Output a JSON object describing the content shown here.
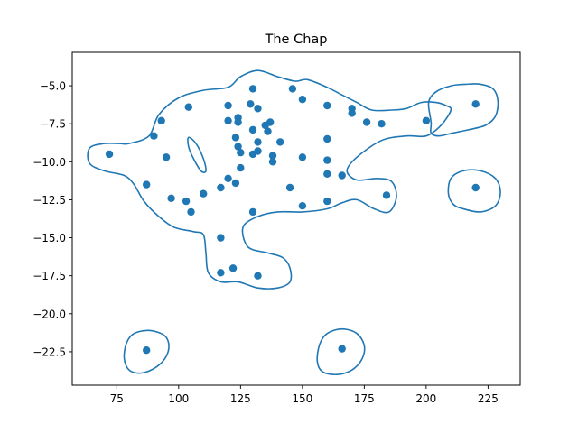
{
  "chart_data": {
    "type": "scatter",
    "title": "The Chap",
    "xlabel": "",
    "ylabel": "",
    "xlim": [
      57,
      238
    ],
    "ylim": [
      -24.7,
      -2.8
    ],
    "x_ticks": [
      75,
      100,
      125,
      150,
      175,
      200,
      225
    ],
    "y_ticks": [
      -5.0,
      -7.5,
      -10.0,
      -12.5,
      -15.0,
      -17.5,
      -20.0,
      -22.5
    ],
    "x_tick_labels": [
      "75",
      "100",
      "125",
      "150",
      "175",
      "200",
      "225"
    ],
    "y_tick_labels": [
      "−5.0",
      "−7.5",
      "−10.0",
      "−12.5",
      "−15.0",
      "−17.5",
      "−20.0",
      "−22.5"
    ],
    "grid": false,
    "color": "#1f77b4",
    "points": [
      [
        72,
        -9.5
      ],
      [
        87,
        -11.5
      ],
      [
        90,
        -8.3
      ],
      [
        93,
        -7.3
      ],
      [
        95,
        -9.7
      ],
      [
        97,
        -12.4
      ],
      [
        103,
        -12.6
      ],
      [
        104,
        -6.4
      ],
      [
        105,
        -13.3
      ],
      [
        110,
        -12.1
      ],
      [
        117,
        -11.7
      ],
      [
        117,
        -15.0
      ],
      [
        117,
        -17.3
      ],
      [
        120,
        -6.3
      ],
      [
        120,
        -7.3
      ],
      [
        120,
        -11.1
      ],
      [
        122,
        -17.0
      ],
      [
        123,
        -8.4
      ],
      [
        123,
        -11.4
      ],
      [
        124,
        -9.0
      ],
      [
        124,
        -7.1
      ],
      [
        124,
        -7.4
      ],
      [
        125,
        -9.4
      ],
      [
        125,
        -10.4
      ],
      [
        129,
        -6.2
      ],
      [
        130,
        -5.2
      ],
      [
        130,
        -7.9
      ],
      [
        130,
        -9.5
      ],
      [
        130,
        -13.3
      ],
      [
        132,
        -6.5
      ],
      [
        132,
        -8.7
      ],
      [
        132,
        -9.3
      ],
      [
        132,
        -17.5
      ],
      [
        135,
        -7.6
      ],
      [
        136,
        -8.0
      ],
      [
        137,
        -7.4
      ],
      [
        138,
        -9.6
      ],
      [
        138,
        -10.0
      ],
      [
        141,
        -8.7
      ],
      [
        145,
        -11.7
      ],
      [
        146,
        -5.2
      ],
      [
        150,
        -5.9
      ],
      [
        150,
        -9.7
      ],
      [
        150,
        -12.9
      ],
      [
        160,
        -6.3
      ],
      [
        160,
        -8.5
      ],
      [
        160,
        -9.9
      ],
      [
        160,
        -10.8
      ],
      [
        160,
        -12.6
      ],
      [
        166,
        -10.9
      ],
      [
        170,
        -6.5
      ],
      [
        170,
        -6.8
      ],
      [
        176,
        -7.4
      ],
      [
        182,
        -7.5
      ],
      [
        184,
        -12.2
      ],
      [
        200,
        -7.3
      ],
      [
        220,
        -6.2
      ],
      [
        220,
        -11.7
      ],
      [
        87,
        -22.4
      ],
      [
        166,
        -22.3
      ]
    ],
    "contours": [
      [
        [
          80,
          -8.8
        ],
        [
          88,
          -8.3
        ],
        [
          92,
          -6.9
        ],
        [
          100,
          -5.8
        ],
        [
          110,
          -5.3
        ],
        [
          120,
          -5.1
        ],
        [
          125,
          -4.4
        ],
        [
          132,
          -4.0
        ],
        [
          140,
          -4.4
        ],
        [
          147,
          -4.7
        ],
        [
          152,
          -4.6
        ],
        [
          160,
          -5.1
        ],
        [
          166,
          -5.6
        ],
        [
          172,
          -6.1
        ],
        [
          178,
          -6.6
        ],
        [
          186,
          -6.6
        ],
        [
          192,
          -6.5
        ],
        [
          198,
          -6.1
        ],
        [
          204,
          -6.1
        ],
        [
          208,
          -6.3
        ],
        [
          210,
          -6.6
        ],
        [
          206,
          -7.6
        ],
        [
          200,
          -8.3
        ],
        [
          192,
          -8.3
        ],
        [
          182,
          -8.6
        ],
        [
          172,
          -9.7
        ],
        [
          168,
          -10.6
        ],
        [
          172,
          -11.2
        ],
        [
          180,
          -11.1
        ],
        [
          186,
          -11.3
        ],
        [
          188,
          -12.3
        ],
        [
          185,
          -13.3
        ],
        [
          179,
          -13.1
        ],
        [
          172,
          -12.5
        ],
        [
          166,
          -12.7
        ],
        [
          160,
          -13.1
        ],
        [
          150,
          -13.3
        ],
        [
          140,
          -13.3
        ],
        [
          132,
          -13.6
        ],
        [
          126,
          -14.3
        ],
        [
          128,
          -15.6
        ],
        [
          136,
          -16.0
        ],
        [
          142,
          -16.3
        ],
        [
          145,
          -17.0
        ],
        [
          145,
          -17.9
        ],
        [
          140,
          -18.3
        ],
        [
          132,
          -18.3
        ],
        [
          124,
          -17.9
        ],
        [
          117,
          -17.9
        ],
        [
          112,
          -17.3
        ],
        [
          111,
          -16.0
        ],
        [
          110,
          -14.8
        ],
        [
          106,
          -14.6
        ],
        [
          98,
          -14.3
        ],
        [
          92,
          -13.6
        ],
        [
          86,
          -12.6
        ],
        [
          82,
          -11.5
        ],
        [
          78,
          -10.9
        ],
        [
          70,
          -10.6
        ],
        [
          64,
          -10.1
        ],
        [
          64,
          -9.1
        ],
        [
          70,
          -8.8
        ],
        [
          76,
          -8.8
        ]
      ],
      [
        [
          104,
          -8.4
        ],
        [
          107,
          -8.8
        ],
        [
          110,
          -9.8
        ],
        [
          111,
          -10.6
        ],
        [
          109,
          -10.6
        ],
        [
          106,
          -9.8
        ],
        [
          104,
          -9.0
        ]
      ],
      [
        [
          201,
          -6.1
        ],
        [
          204,
          -5.4
        ],
        [
          210,
          -5.0
        ],
        [
          216,
          -4.9
        ],
        [
          222,
          -4.9
        ],
        [
          227,
          -5.2
        ],
        [
          229,
          -6.0
        ],
        [
          228,
          -7.0
        ],
        [
          224,
          -7.6
        ],
        [
          217,
          -7.9
        ],
        [
          211,
          -8.1
        ],
        [
          205,
          -8.3
        ],
        [
          202,
          -8.1
        ],
        [
          202,
          -7.4
        ]
      ],
      [
        [
          209,
          -12.1
        ],
        [
          210,
          -11.1
        ],
        [
          215,
          -10.6
        ],
        [
          222,
          -10.6
        ],
        [
          228,
          -11.1
        ],
        [
          230,
          -12.0
        ],
        [
          228,
          -12.9
        ],
        [
          222,
          -13.3
        ],
        [
          215,
          -13.1
        ],
        [
          211,
          -12.8
        ]
      ],
      [
        [
          78,
          -22.9
        ],
        [
          79,
          -21.9
        ],
        [
          82,
          -21.3
        ],
        [
          88,
          -21.1
        ],
        [
          94,
          -21.4
        ],
        [
          96,
          -22.0
        ],
        [
          95,
          -22.8
        ],
        [
          91,
          -23.5
        ],
        [
          85,
          -23.9
        ],
        [
          80,
          -23.7
        ]
      ],
      [
        [
          156,
          -23.1
        ],
        [
          157,
          -22.0
        ],
        [
          160,
          -21.3
        ],
        [
          166,
          -21.0
        ],
        [
          172,
          -21.3
        ],
        [
          175,
          -22.1
        ],
        [
          174,
          -23.0
        ],
        [
          170,
          -23.7
        ],
        [
          164,
          -24.0
        ],
        [
          158,
          -23.8
        ]
      ]
    ]
  }
}
